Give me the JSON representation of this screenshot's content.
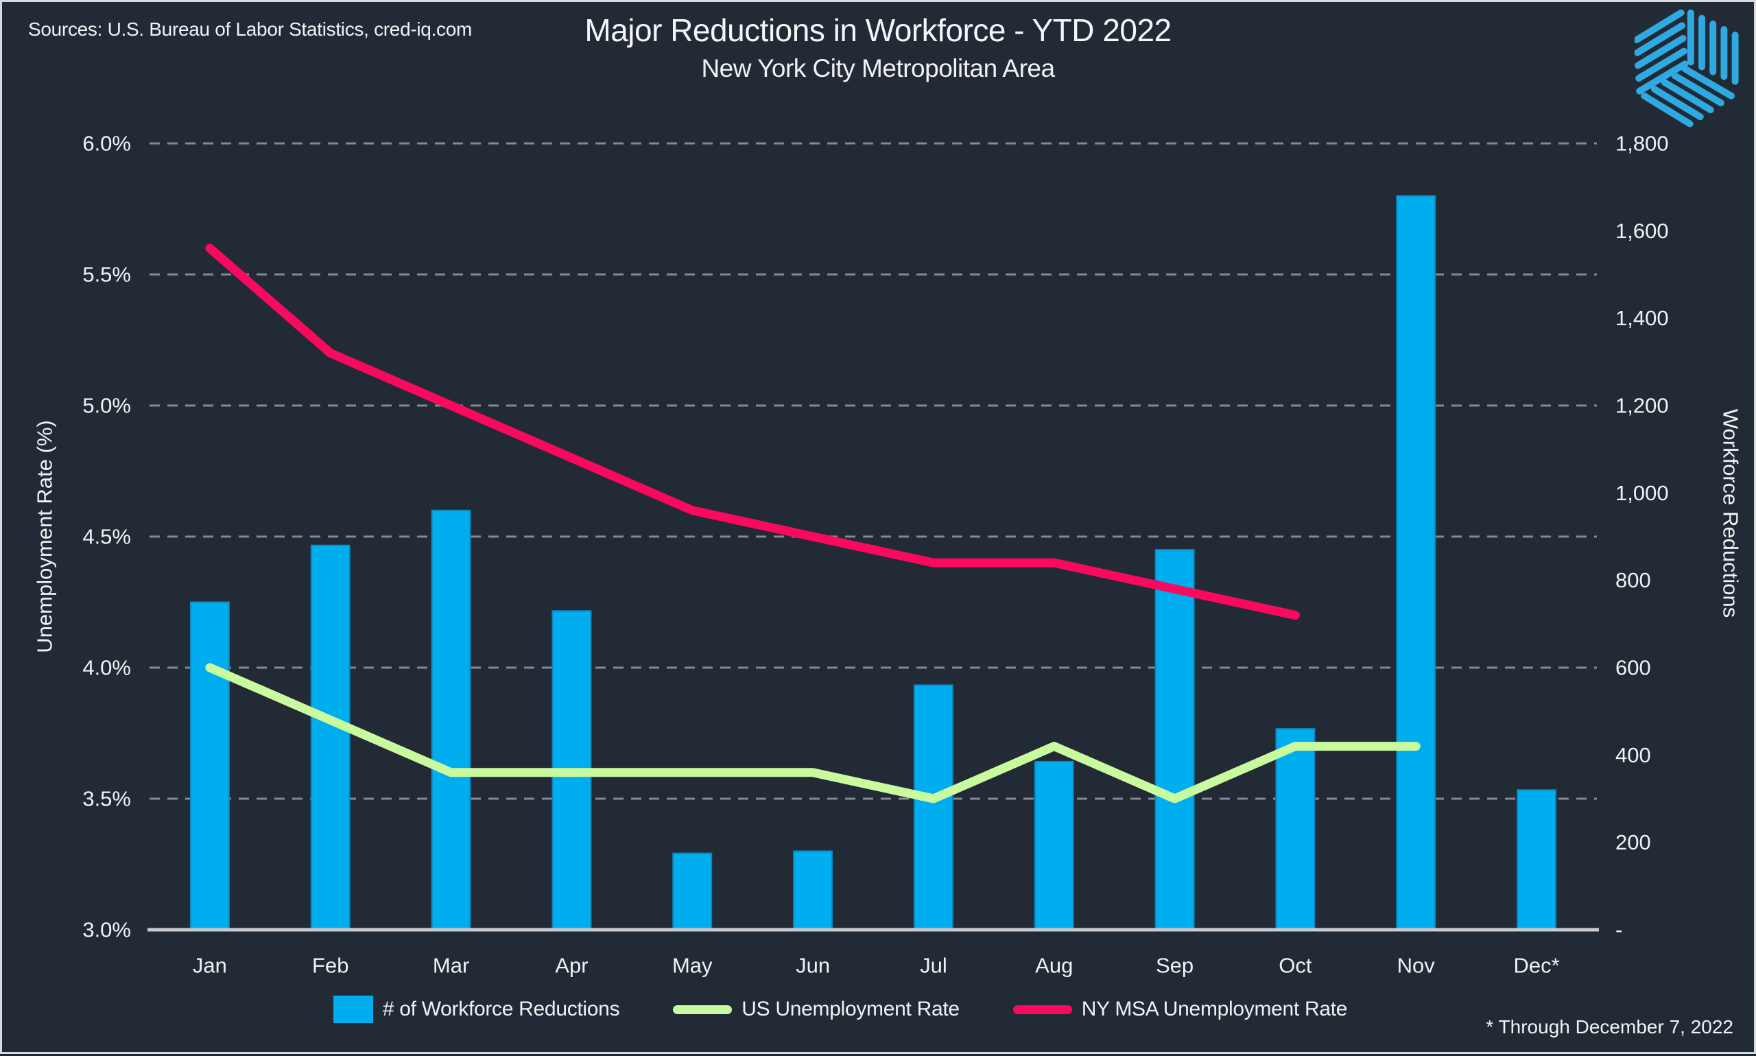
{
  "header": {
    "sources": "Sources: U.S. Bureau of Labor Statistics, cred-iq.com",
    "title": "Major Reductions in Workforce - YTD 2022",
    "subtitle": "New York City Metropolitan Area"
  },
  "footnote": "* Through December 7, 2022",
  "colors": {
    "background": "#222A35",
    "bar": "#00AEF0",
    "bar_edge": "#0E85BD",
    "us_line": "#C9FA9E",
    "ny_line": "#FA0A5F",
    "text": "#F1F2F4",
    "gridline": "#828A96",
    "axis_line": "#C9CBCF",
    "logo": "#2FA9E1"
  },
  "legend": [
    {
      "label": "# of Workforce Reductions",
      "swatch": "bar",
      "color": "#00AEF0"
    },
    {
      "label": "US Unemployment Rate",
      "swatch": "line",
      "color": "#C9FA9E"
    },
    {
      "label": "NY MSA Unemployment Rate",
      "swatch": "line",
      "color": "#FA0A5F"
    }
  ],
  "chart_data": {
    "type": "combo",
    "categories": [
      "Jan",
      "Feb",
      "Mar",
      "Apr",
      "May",
      "Jun",
      "Jul",
      "Aug",
      "Sep",
      "Oct",
      "Nov",
      "Dec*"
    ],
    "series": [
      {
        "name": "# of Workforce Reductions",
        "type": "bar",
        "axis": "right",
        "color": "#00AEF0",
        "values": [
          750,
          880,
          960,
          730,
          175,
          180,
          560,
          385,
          870,
          460,
          1680,
          320
        ]
      },
      {
        "name": "US Unemployment Rate",
        "type": "line",
        "axis": "left",
        "color": "#C9FA9E",
        "values": [
          4.0,
          3.8,
          3.6,
          3.6,
          3.6,
          3.6,
          3.5,
          3.7,
          3.5,
          3.7,
          3.7,
          null
        ]
      },
      {
        "name": "NY MSA Unemployment Rate",
        "type": "line",
        "axis": "left",
        "color": "#FA0A5F",
        "values": [
          5.6,
          5.2,
          5.0,
          4.8,
          4.6,
          4.5,
          4.4,
          4.4,
          4.3,
          4.2,
          null,
          null
        ]
      }
    ],
    "left_axis": {
      "label": "Unemployment Rate (%)",
      "min": 3.0,
      "max": 6.0,
      "step": 0.5,
      "ticks": [
        "6.0%",
        "5.5%",
        "5.0%",
        "4.5%",
        "4.0%",
        "3.5%",
        "3.0%"
      ]
    },
    "right_axis": {
      "label": "Workforce Reductions",
      "min": 0,
      "max": 1800,
      "step": 200,
      "ticks": [
        "1,800",
        "1,600",
        "1,400",
        "1,200",
        "1,000",
        "800",
        "600",
        "400",
        "200",
        "-"
      ]
    },
    "grid": "dashed-horizontal",
    "legend_position": "bottom"
  }
}
